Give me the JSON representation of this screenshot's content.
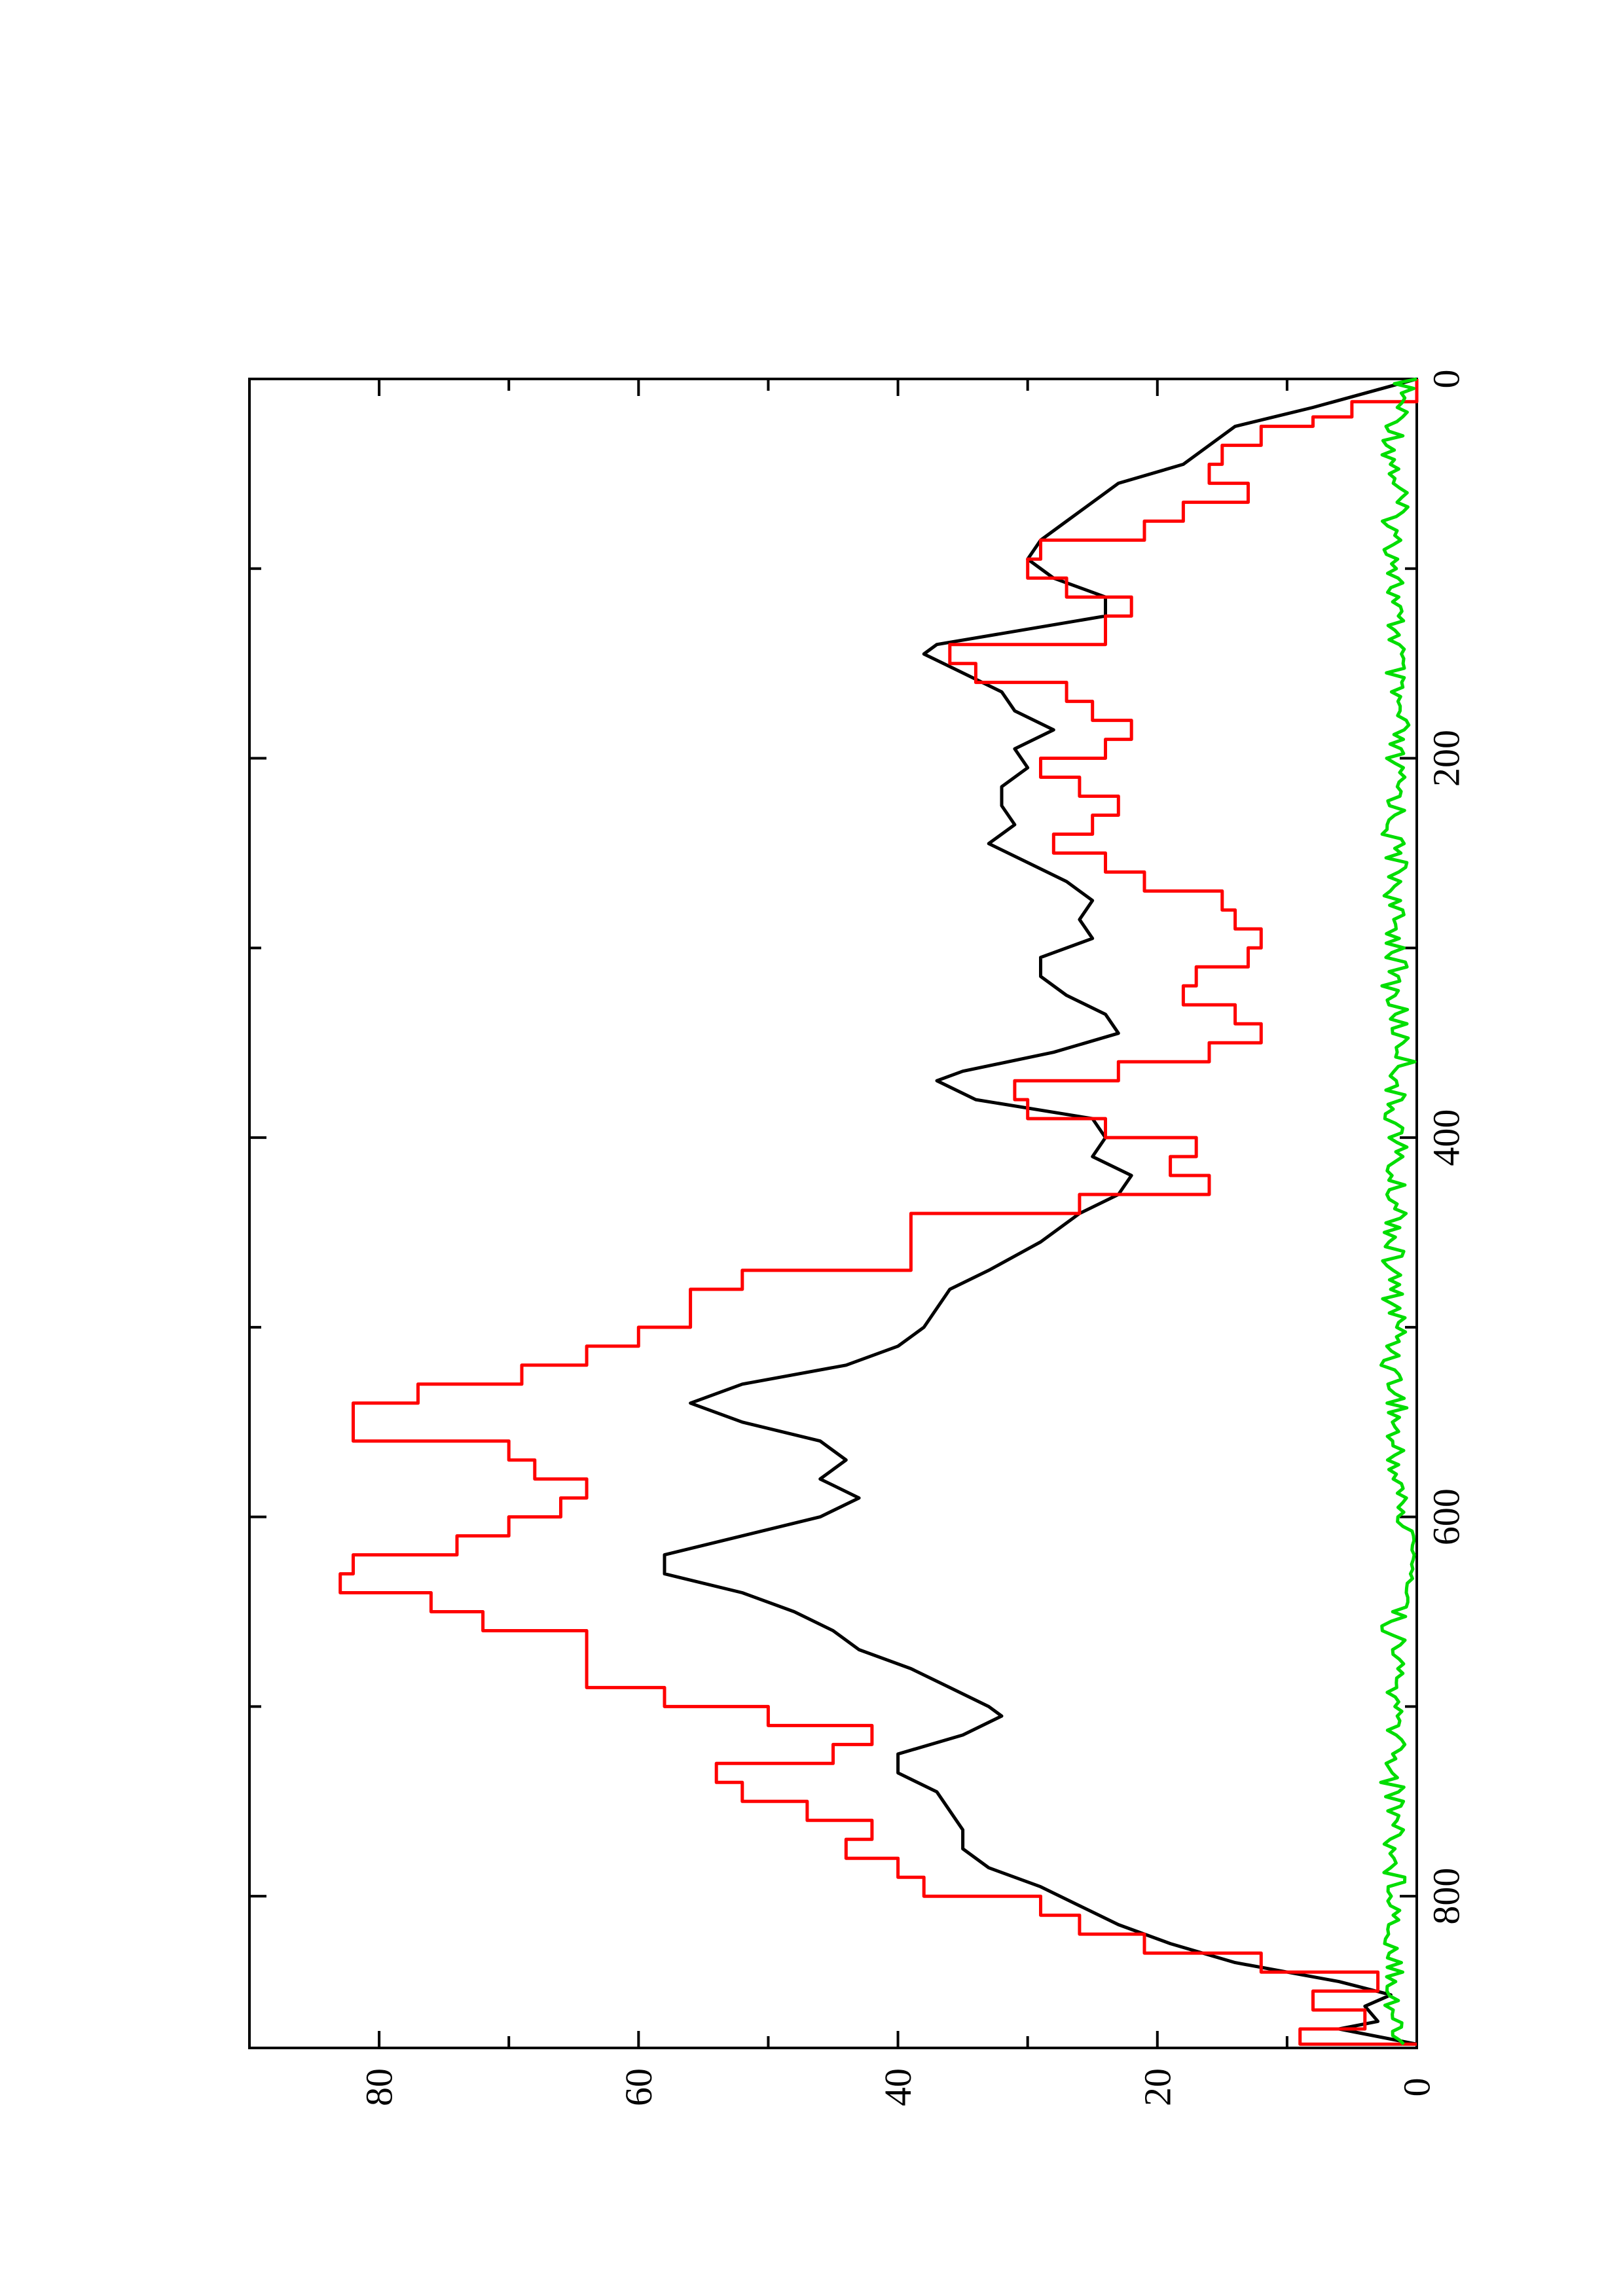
{
  "chart_data": {
    "type": "line",
    "orientation": "rotated-90-ccw",
    "title": "",
    "xlabel": "",
    "ylabel": "",
    "xlim": [
      0,
      880
    ],
    "ylim": [
      0,
      90
    ],
    "x_ticks": [
      0,
      200,
      400,
      600,
      800
    ],
    "x_minor_ticks": [
      100,
      300,
      500,
      700
    ],
    "y_ticks": [
      0,
      20,
      40,
      60,
      80
    ],
    "y_minor_ticks": [
      10,
      30,
      50,
      70
    ],
    "grid": false,
    "legend": "none",
    "series": [
      {
        "color": "#000000",
        "style": "smooth",
        "points": [
          [
            0,
            0
          ],
          [
            15,
            8
          ],
          [
            25,
            14
          ],
          [
            35,
            16
          ],
          [
            45,
            18
          ],
          [
            55,
            23
          ],
          [
            65,
            25
          ],
          [
            75,
            27
          ],
          [
            85,
            29
          ],
          [
            95,
            30
          ],
          [
            105,
            28
          ],
          [
            115,
            24
          ],
          [
            125,
            24
          ],
          [
            140,
            37
          ],
          [
            145,
            38
          ],
          [
            155,
            35
          ],
          [
            165,
            32
          ],
          [
            175,
            31
          ],
          [
            185,
            28
          ],
          [
            195,
            31
          ],
          [
            205,
            30
          ],
          [
            215,
            32
          ],
          [
            225,
            32
          ],
          [
            235,
            31
          ],
          [
            245,
            33
          ],
          [
            255,
            30
          ],
          [
            265,
            27
          ],
          [
            275,
            25
          ],
          [
            285,
            26
          ],
          [
            295,
            25
          ],
          [
            305,
            29
          ],
          [
            315,
            29
          ],
          [
            325,
            27
          ],
          [
            335,
            24
          ],
          [
            345,
            23
          ],
          [
            355,
            28
          ],
          [
            365,
            35
          ],
          [
            370,
            37
          ],
          [
            380,
            34
          ],
          [
            390,
            25
          ],
          [
            400,
            24
          ],
          [
            410,
            25
          ],
          [
            420,
            22
          ],
          [
            430,
            23
          ],
          [
            440,
            26
          ],
          [
            455,
            29
          ],
          [
            470,
            33
          ],
          [
            480,
            36
          ],
          [
            490,
            37
          ],
          [
            500,
            38
          ],
          [
            510,
            40
          ],
          [
            520,
            44
          ],
          [
            530,
            52
          ],
          [
            540,
            56
          ],
          [
            550,
            52
          ],
          [
            560,
            46
          ],
          [
            570,
            44
          ],
          [
            580,
            46
          ],
          [
            590,
            43
          ],
          [
            600,
            46
          ],
          [
            610,
            52
          ],
          [
            620,
            58
          ],
          [
            630,
            58
          ],
          [
            640,
            52
          ],
          [
            650,
            48
          ],
          [
            660,
            45
          ],
          [
            670,
            43
          ],
          [
            680,
            39
          ],
          [
            690,
            36
          ],
          [
            700,
            33
          ],
          [
            705,
            32
          ],
          [
            715,
            35
          ],
          [
            725,
            40
          ],
          [
            735,
            40
          ],
          [
            745,
            37
          ],
          [
            755,
            36
          ],
          [
            765,
            35
          ],
          [
            775,
            35
          ],
          [
            785,
            33
          ],
          [
            795,
            29
          ],
          [
            805,
            26
          ],
          [
            815,
            23
          ],
          [
            825,
            19
          ],
          [
            835,
            14
          ],
          [
            845,
            6
          ],
          [
            852,
            2
          ],
          [
            858,
            4
          ],
          [
            866,
            3
          ],
          [
            870,
            6
          ],
          [
            878,
            0
          ]
        ]
      },
      {
        "color": "#ff0000",
        "style": "stepped",
        "points": [
          [
            0,
            0
          ],
          [
            12,
            5
          ],
          [
            20,
            8
          ],
          [
            25,
            12
          ],
          [
            35,
            15
          ],
          [
            45,
            16
          ],
          [
            55,
            13
          ],
          [
            65,
            18
          ],
          [
            75,
            21
          ],
          [
            85,
            29
          ],
          [
            95,
            30
          ],
          [
            105,
            27
          ],
          [
            115,
            22
          ],
          [
            125,
            24
          ],
          [
            140,
            36
          ],
          [
            150,
            34
          ],
          [
            160,
            27
          ],
          [
            170,
            25
          ],
          [
            180,
            22
          ],
          [
            190,
            24
          ],
          [
            200,
            29
          ],
          [
            210,
            26
          ],
          [
            220,
            23
          ],
          [
            230,
            25
          ],
          [
            240,
            28
          ],
          [
            250,
            24
          ],
          [
            260,
            21
          ],
          [
            270,
            15
          ],
          [
            280,
            14
          ],
          [
            290,
            12
          ],
          [
            300,
            13
          ],
          [
            310,
            17
          ],
          [
            320,
            18
          ],
          [
            330,
            14
          ],
          [
            340,
            12
          ],
          [
            350,
            16
          ],
          [
            360,
            23
          ],
          [
            370,
            31
          ],
          [
            380,
            30
          ],
          [
            390,
            24
          ],
          [
            400,
            17
          ],
          [
            410,
            19
          ],
          [
            420,
            16
          ],
          [
            430,
            26
          ],
          [
            440,
            39
          ],
          [
            460,
            39
          ],
          [
            470,
            52
          ],
          [
            480,
            56
          ],
          [
            500,
            60
          ],
          [
            510,
            64
          ],
          [
            520,
            69
          ],
          [
            530,
            77
          ],
          [
            540,
            82
          ],
          [
            560,
            70
          ],
          [
            570,
            68
          ],
          [
            580,
            64
          ],
          [
            590,
            66
          ],
          [
            600,
            70
          ],
          [
            610,
            74
          ],
          [
            620,
            82
          ],
          [
            630,
            83
          ],
          [
            640,
            76
          ],
          [
            650,
            72
          ],
          [
            660,
            64
          ],
          [
            680,
            64
          ],
          [
            690,
            58
          ],
          [
            700,
            50
          ],
          [
            710,
            42
          ],
          [
            720,
            45
          ],
          [
            730,
            54
          ],
          [
            740,
            52
          ],
          [
            750,
            47
          ],
          [
            760,
            42
          ],
          [
            770,
            44
          ],
          [
            780,
            40
          ],
          [
            790,
            38
          ],
          [
            800,
            29
          ],
          [
            810,
            26
          ],
          [
            820,
            21
          ],
          [
            830,
            12
          ],
          [
            840,
            3
          ],
          [
            850,
            8
          ],
          [
            860,
            4
          ],
          [
            870,
            9
          ],
          [
            878,
            0
          ]
        ]
      },
      {
        "color": "#00dd00",
        "style": "noisy-baseline",
        "points": [
          [
            0,
            0
          ],
          [
            20,
            1
          ],
          [
            40,
            2
          ],
          [
            60,
            1
          ],
          [
            80,
            2
          ],
          [
            100,
            1
          ],
          [
            120,
            2
          ],
          [
            140,
            1
          ],
          [
            160,
            2
          ],
          [
            180,
            1
          ],
          [
            200,
            2
          ],
          [
            220,
            1
          ],
          [
            240,
            2
          ],
          [
            260,
            1
          ],
          [
            280,
            2
          ],
          [
            300,
            1
          ],
          [
            320,
            2
          ],
          [
            340,
            1
          ],
          [
            360,
            0
          ],
          [
            380,
            2
          ],
          [
            400,
            1
          ],
          [
            420,
            2
          ],
          [
            440,
            1
          ],
          [
            460,
            2
          ],
          [
            480,
            2
          ],
          [
            500,
            1
          ],
          [
            520,
            2
          ],
          [
            540,
            1
          ],
          [
            560,
            2
          ],
          [
            580,
            1
          ],
          [
            600,
            0.5
          ],
          [
            620,
            0
          ],
          [
            640,
            1
          ],
          [
            660,
            2
          ],
          [
            680,
            1
          ],
          [
            700,
            2
          ],
          [
            720,
            1
          ],
          [
            740,
            2
          ],
          [
            760,
            1
          ],
          [
            780,
            2
          ],
          [
            800,
            1
          ],
          [
            820,
            2
          ],
          [
            840,
            1
          ],
          [
            860,
            2
          ],
          [
            878,
            1
          ]
        ]
      }
    ]
  }
}
